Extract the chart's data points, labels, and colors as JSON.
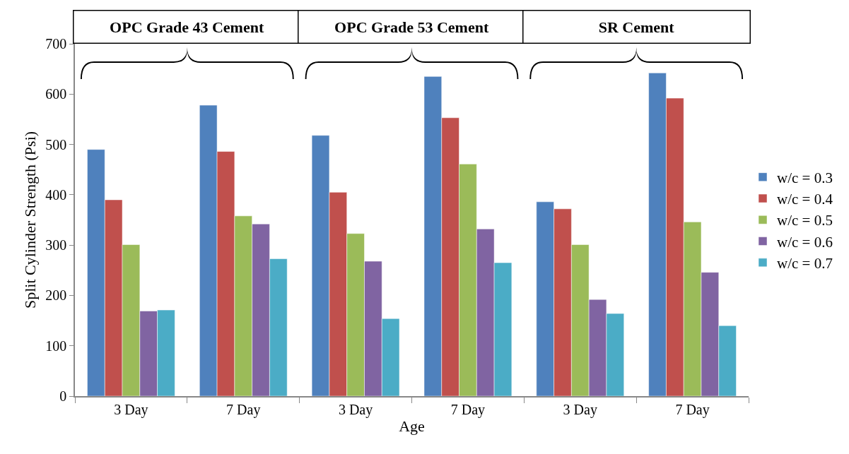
{
  "chart_data": {
    "type": "bar",
    "xlabel": "Age",
    "ylabel": "Split Cylinder Strength (Psi)",
    "categories": [
      "3 Day",
      "7 Day",
      "3 Day",
      "7 Day",
      "3 Day",
      "7 Day"
    ],
    "series": [
      {
        "name": "w/c = 0.3",
        "color": "#4f81bd",
        "values": [
          490,
          578,
          518,
          635,
          386,
          642
        ]
      },
      {
        "name": "w/c = 0.4",
        "color": "#c0504d",
        "values": [
          390,
          486,
          405,
          553,
          372,
          592
        ]
      },
      {
        "name": "w/c = 0.5",
        "color": "#9bbb59",
        "values": [
          301,
          358,
          323,
          461,
          301,
          346
        ]
      },
      {
        "name": "w/c = 0.6",
        "color": "#8064a2",
        "values": [
          169,
          342,
          268,
          332,
          192,
          246
        ]
      },
      {
        "name": "w/c = 0.7",
        "color": "#4bacc6",
        "values": [
          171,
          273,
          154,
          265,
          164,
          140
        ]
      }
    ],
    "annotations": [
      "OPC Grade 43 Cement",
      "OPC Grade 53 Cement",
      "SR Cement"
    ],
    "ylim": [
      0,
      700
    ],
    "yticks": [
      0,
      100,
      200,
      300,
      400,
      500,
      600,
      700
    ],
    "legend": "right"
  }
}
